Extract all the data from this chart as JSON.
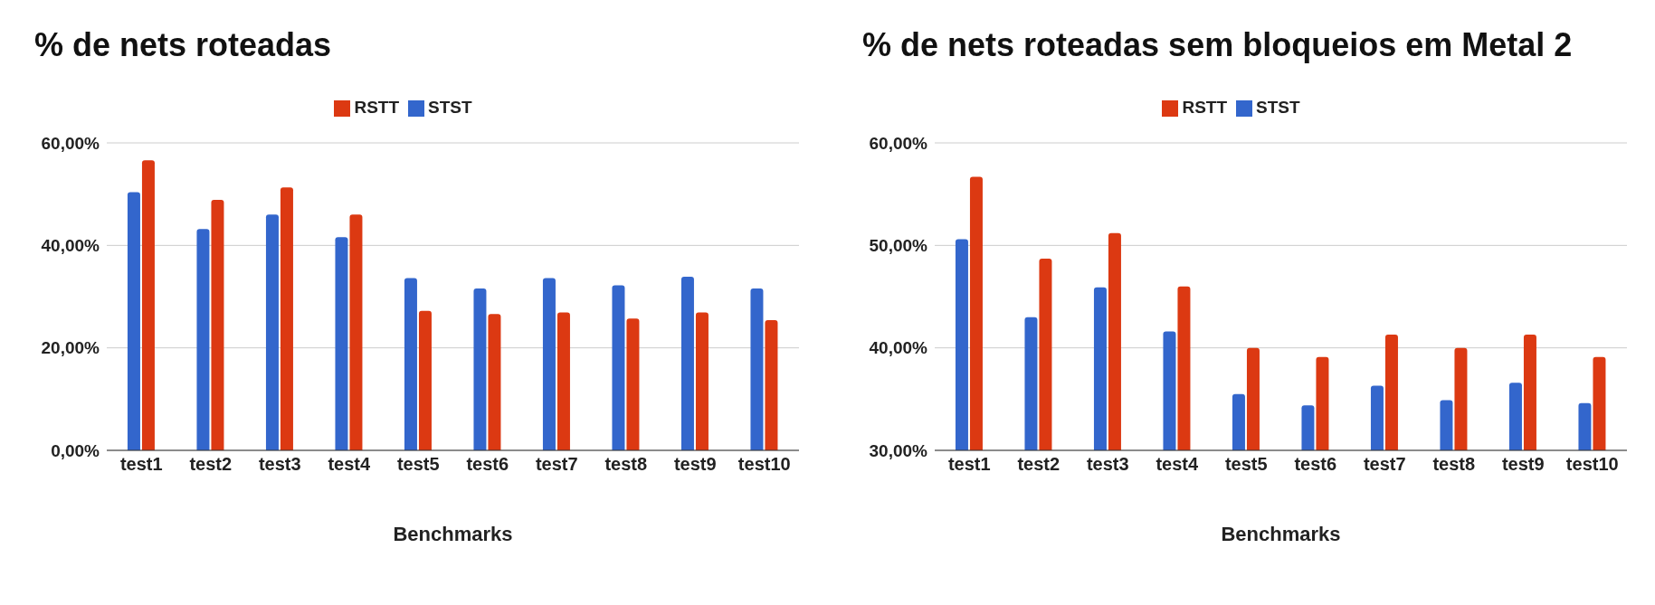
{
  "chart_data": [
    {
      "type": "bar",
      "title": "% de nets roteadas",
      "xlabel": "Benchmarks",
      "categories": [
        "test1",
        "test2",
        "test3",
        "test4",
        "test5",
        "test6",
        "test7",
        "test8",
        "test9",
        "test10"
      ],
      "series": [
        {
          "name": "STST",
          "color": "#3366cc",
          "values": [
            50.4,
            43.2,
            46.0,
            41.6,
            33.6,
            31.6,
            33.6,
            32.2,
            33.9,
            31.6
          ]
        },
        {
          "name": "RSTT",
          "color": "#dc3912",
          "values": [
            56.6,
            48.9,
            51.3,
            46.0,
            27.2,
            26.6,
            26.9,
            25.7,
            26.9,
            25.4
          ]
        }
      ],
      "ylim": [
        0,
        60
      ],
      "yticks": [
        {
          "value": 0,
          "label": "0,00%"
        },
        {
          "value": 20,
          "label": "20,00%"
        },
        {
          "value": 40,
          "label": "40,00%"
        },
        {
          "value": 60,
          "label": "60,00%"
        }
      ],
      "grid": "y",
      "legend": "top"
    },
    {
      "type": "bar",
      "title": "% de nets roteadas sem bloqueios em Metal 2",
      "xlabel": "Benchmarks",
      "categories": [
        "test1",
        "test2",
        "test3",
        "test4",
        "test5",
        "test6",
        "test7",
        "test8",
        "test9",
        "test10"
      ],
      "series": [
        {
          "name": "STST",
          "color": "#3366cc",
          "values": [
            50.6,
            43.0,
            45.9,
            41.6,
            35.5,
            34.4,
            36.3,
            34.9,
            36.6,
            34.6
          ]
        },
        {
          "name": "RSTT",
          "color": "#dc3912",
          "values": [
            56.7,
            48.7,
            51.2,
            46.0,
            40.0,
            39.1,
            41.3,
            40.0,
            41.3,
            39.1
          ]
        }
      ],
      "ylim": [
        30,
        60
      ],
      "yticks": [
        {
          "value": 30,
          "label": "30,00%"
        },
        {
          "value": 40,
          "label": "40,00%"
        },
        {
          "value": 50,
          "label": "50,00%"
        },
        {
          "value": 60,
          "label": "60,00%"
        }
      ],
      "grid": "y",
      "legend": "top"
    }
  ]
}
